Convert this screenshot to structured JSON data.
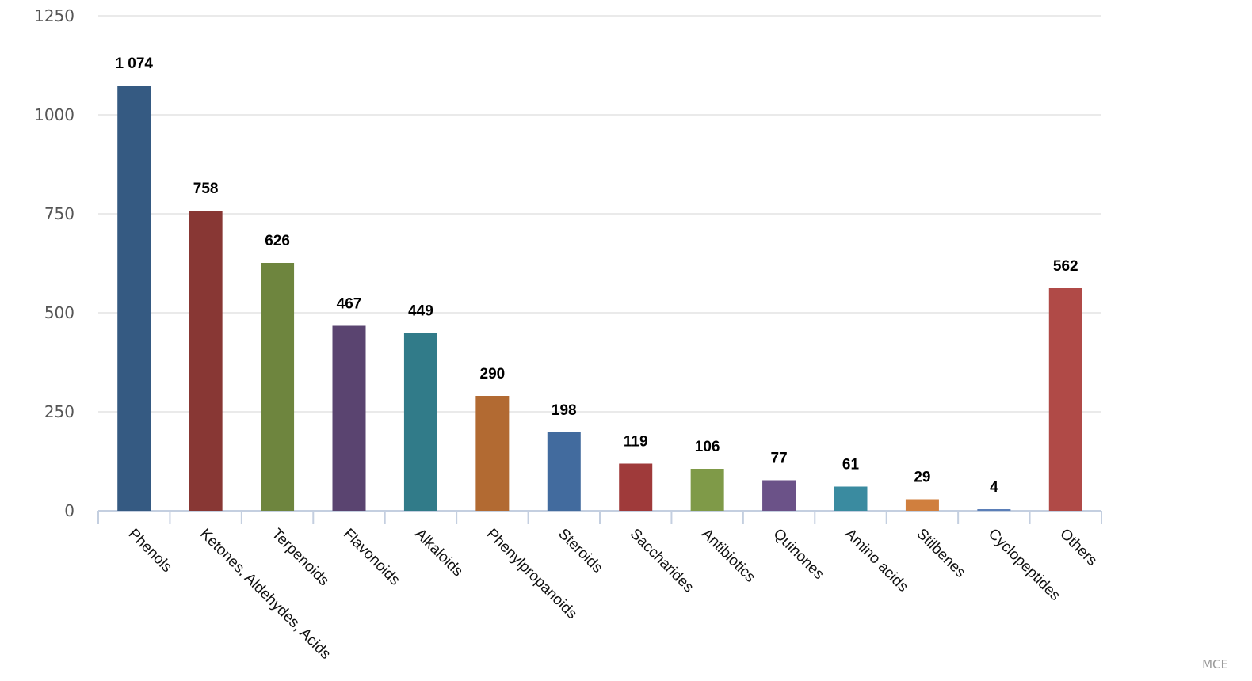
{
  "chart_data": {
    "type": "bar",
    "title": "",
    "xlabel": "",
    "ylabel": "",
    "ylim": [
      0,
      1250
    ],
    "yticks": [
      0,
      250,
      500,
      750,
      1000,
      1250
    ],
    "grid": true,
    "legend": "none",
    "categories": [
      "Phenols",
      "Ketones, Aldehydes, Acids",
      "Terpenoids",
      "Flavonoids",
      "Alkaloids",
      "Phenylpropanoids",
      "Steroids",
      "Saccharides",
      "Antibiotics",
      "Quinones",
      "Amino acids",
      "Stilbenes",
      "Cyclopeptides",
      "Others"
    ],
    "values": [
      1074,
      758,
      626,
      467,
      449,
      290,
      198,
      119,
      106,
      77,
      61,
      29,
      4,
      562
    ],
    "value_labels": [
      "1 074",
      "758",
      "626",
      "467",
      "449",
      "290",
      "198",
      "119",
      "106",
      "77",
      "61",
      "29",
      "4",
      "562"
    ],
    "colors": [
      "#355a82",
      "#883734",
      "#6e853e",
      "#5a4470",
      "#317b89",
      "#b26a32",
      "#426b9e",
      "#9f3a3a",
      "#7f9a48",
      "#6b5288",
      "#3a8ba0",
      "#d07f3e",
      "#5b7fb8",
      "#b04a47"
    ]
  },
  "credit": "MCE"
}
